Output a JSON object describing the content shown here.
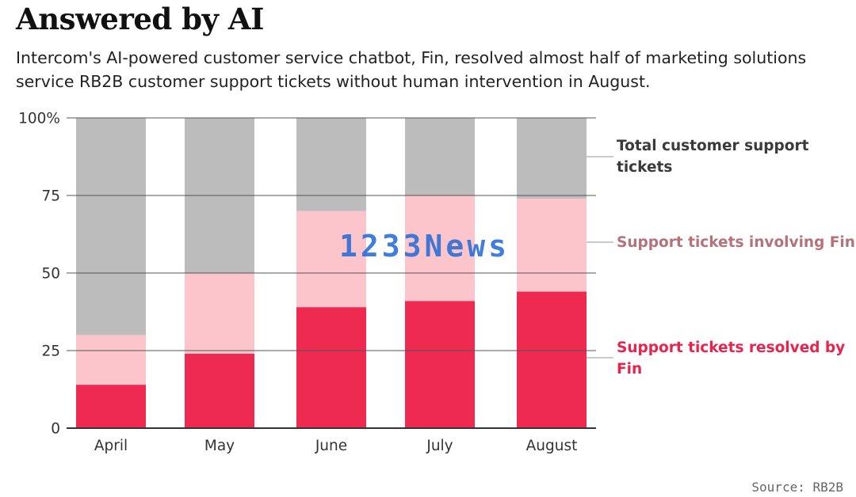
{
  "header": {
    "title": "Answered by AI",
    "subtitle": "Intercom's AI-powered customer service chatbot, Fin, resolved almost half of marketing solutions service RB2B customer support tickets without human intervention in August."
  },
  "footer": {
    "source": "Source: RB2B"
  },
  "watermark": "1233News",
  "chart_data": {
    "type": "bar",
    "stacked": true,
    "categories": [
      "April",
      "May",
      "June",
      "July",
      "August"
    ],
    "series": [
      {
        "name": "Support tickets resolved by Fin",
        "color": "#ee2a51",
        "values": [
          14,
          24,
          39,
          41,
          44
        ]
      },
      {
        "name": "Support tickets involving Fin",
        "color": "#fcc4cb",
        "values": [
          16,
          26,
          31,
          34,
          30
        ]
      },
      {
        "name": "Total customer support tickets",
        "color": "#bcbcbc",
        "values": [
          70,
          50,
          30,
          25,
          26
        ]
      }
    ],
    "legend_text_colors": [
      "#e8244d",
      "#b5727b",
      "#3a3a3a"
    ],
    "ylim": [
      0,
      100
    ],
    "yticks": [
      "0",
      "25",
      "50",
      "75",
      "100%"
    ],
    "ytick_values": [
      0,
      25,
      50,
      75,
      100
    ],
    "xlabel": "",
    "ylabel": "",
    "legend_position": "right",
    "grid": true
  }
}
